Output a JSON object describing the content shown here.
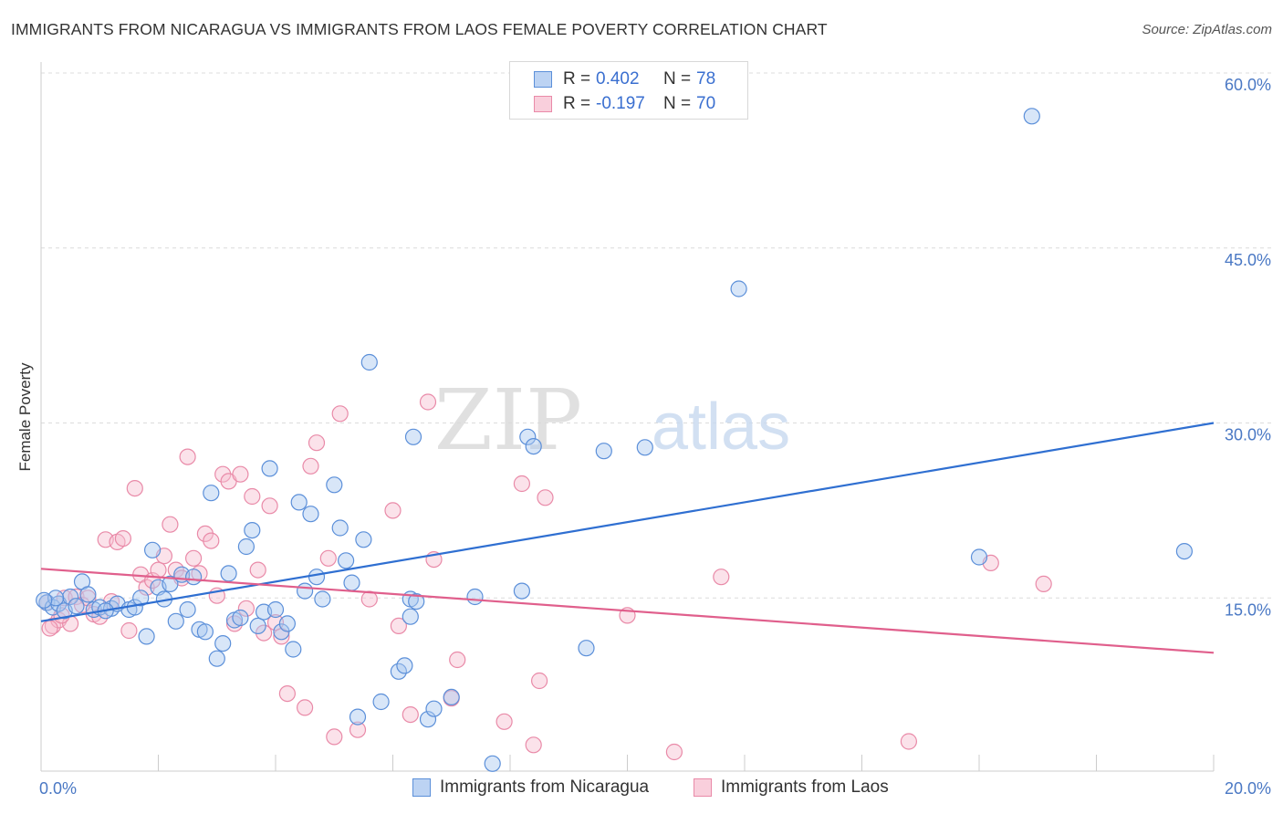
{
  "title": "IMMIGRANTS FROM NICARAGUA VS IMMIGRANTS FROM LAOS FEMALE POVERTY CORRELATION CHART",
  "source": "Source: ZipAtlas.com",
  "watermark": {
    "zip": "ZIP",
    "atlas": "atlas"
  },
  "colors": {
    "series1_fill": "#a9c7f0",
    "series1_stroke": "#5b8fd9",
    "series1_line": "#2f6fd1",
    "series2_fill": "#f6bfd0",
    "series2_stroke": "#e98aa8",
    "series2_line": "#e05f8c",
    "axis_text": "#4a78c4",
    "grid": "#dcdcdc"
  },
  "legend": {
    "rows": [
      {
        "r_label": "R =",
        "r_value": "0.402",
        "n_label": "N =",
        "n_value": "78"
      },
      {
        "r_label": "R =",
        "r_value": "-0.197",
        "n_label": "N =",
        "n_value": "70"
      }
    ]
  },
  "chart_data": {
    "type": "scatter",
    "xlabel": "",
    "ylabel": "Female Poverty",
    "xlim": [
      0,
      20
    ],
    "ylim": [
      0,
      60
    ],
    "x_tick_labels": [
      "0.0%",
      "20.0%"
    ],
    "y_tick_labels": [
      "15.0%",
      "30.0%",
      "45.0%",
      "60.0%"
    ],
    "y_ticks": [
      15,
      30,
      45,
      60
    ],
    "grid": true,
    "legend_placement": "top-center",
    "series": [
      {
        "name": "Immigrants from Nicaragua",
        "trend": {
          "x": [
            0,
            20
          ],
          "y": [
            13.0,
            30.0
          ]
        },
        "points": [
          [
            0.1,
            14.6
          ],
          [
            0.2,
            14.2
          ],
          [
            0.3,
            14.5
          ],
          [
            0.4,
            13.9
          ],
          [
            0.5,
            15.1
          ],
          [
            0.6,
            14.3
          ],
          [
            0.7,
            16.4
          ],
          [
            0.8,
            15.3
          ],
          [
            0.9,
            14.0
          ],
          [
            1.0,
            14.2
          ],
          [
            1.2,
            14.1
          ],
          [
            1.3,
            14.5
          ],
          [
            1.5,
            14.0
          ],
          [
            1.6,
            14.2
          ],
          [
            1.7,
            15.0
          ],
          [
            1.8,
            11.7
          ],
          [
            1.9,
            19.1
          ],
          [
            2.0,
            15.9
          ],
          [
            2.1,
            14.9
          ],
          [
            2.2,
            16.2
          ],
          [
            2.3,
            13.0
          ],
          [
            2.4,
            17.0
          ],
          [
            2.5,
            14.0
          ],
          [
            2.6,
            16.8
          ],
          [
            2.7,
            12.3
          ],
          [
            2.8,
            12.1
          ],
          [
            2.9,
            24.0
          ],
          [
            3.0,
            9.8
          ],
          [
            3.1,
            11.1
          ],
          [
            3.2,
            17.1
          ],
          [
            3.3,
            13.1
          ],
          [
            3.4,
            13.3
          ],
          [
            3.5,
            19.4
          ],
          [
            3.6,
            20.8
          ],
          [
            3.7,
            12.6
          ],
          [
            3.8,
            13.8
          ],
          [
            3.9,
            26.1
          ],
          [
            4.0,
            14.0
          ],
          [
            4.1,
            12.1
          ],
          [
            4.2,
            12.8
          ],
          [
            4.3,
            10.6
          ],
          [
            4.4,
            23.2
          ],
          [
            4.5,
            15.6
          ],
          [
            4.6,
            22.2
          ],
          [
            4.7,
            16.8
          ],
          [
            4.8,
            14.9
          ],
          [
            5.0,
            24.7
          ],
          [
            5.1,
            21.0
          ],
          [
            5.2,
            18.2
          ],
          [
            5.3,
            16.3
          ],
          [
            5.4,
            4.8
          ],
          [
            5.5,
            20.0
          ],
          [
            5.6,
            35.2
          ],
          [
            5.8,
            6.1
          ],
          [
            6.1,
            8.7
          ],
          [
            6.2,
            9.2
          ],
          [
            6.3,
            14.9
          ],
          [
            6.35,
            28.8
          ],
          [
            6.4,
            14.7
          ],
          [
            6.6,
            4.6
          ],
          [
            6.7,
            5.5
          ],
          [
            7.0,
            6.5
          ],
          [
            7.4,
            15.1
          ],
          [
            7.7,
            0.8
          ],
          [
            8.2,
            15.6
          ],
          [
            8.3,
            28.8
          ],
          [
            8.4,
            28.0
          ],
          [
            9.3,
            10.7
          ],
          [
            9.6,
            27.6
          ],
          [
            10.3,
            27.9
          ],
          [
            11.9,
            41.5
          ],
          [
            6.3,
            13.4
          ],
          [
            1.1,
            13.9
          ],
          [
            0.25,
            15.0
          ],
          [
            16.9,
            56.3
          ],
          [
            16.0,
            18.5
          ],
          [
            19.5,
            19.0
          ],
          [
            0.05,
            14.8
          ]
        ]
      },
      {
        "name": "Immigrants from Laos",
        "trend": {
          "x": [
            0,
            20
          ],
          "y": [
            17.5,
            10.3
          ]
        },
        "points": [
          [
            0.1,
            14.6
          ],
          [
            0.2,
            12.6
          ],
          [
            0.3,
            13.1
          ],
          [
            0.4,
            15.0
          ],
          [
            0.5,
            12.8
          ],
          [
            0.6,
            15.1
          ],
          [
            0.7,
            14.4
          ],
          [
            0.8,
            15.0
          ],
          [
            0.9,
            13.6
          ],
          [
            1.0,
            13.4
          ],
          [
            1.1,
            20.0
          ],
          [
            1.2,
            14.7
          ],
          [
            1.3,
            19.8
          ],
          [
            1.4,
            20.1
          ],
          [
            1.5,
            12.2
          ],
          [
            1.6,
            24.4
          ],
          [
            1.7,
            17.0
          ],
          [
            1.8,
            15.9
          ],
          [
            1.9,
            16.5
          ],
          [
            2.0,
            17.4
          ],
          [
            2.1,
            18.6
          ],
          [
            2.2,
            21.3
          ],
          [
            2.3,
            17.4
          ],
          [
            2.4,
            16.7
          ],
          [
            2.5,
            27.1
          ],
          [
            2.6,
            18.4
          ],
          [
            2.7,
            17.1
          ],
          [
            2.8,
            20.5
          ],
          [
            2.9,
            19.9
          ],
          [
            3.0,
            15.2
          ],
          [
            3.1,
            25.6
          ],
          [
            3.2,
            25.0
          ],
          [
            3.3,
            12.8
          ],
          [
            3.4,
            25.6
          ],
          [
            3.5,
            14.1
          ],
          [
            3.6,
            23.7
          ],
          [
            3.7,
            17.4
          ],
          [
            3.8,
            12.0
          ],
          [
            3.9,
            22.9
          ],
          [
            4.0,
            12.9
          ],
          [
            4.1,
            11.7
          ],
          [
            4.2,
            6.8
          ],
          [
            4.5,
            5.6
          ],
          [
            4.6,
            26.3
          ],
          [
            4.7,
            28.3
          ],
          [
            4.9,
            18.4
          ],
          [
            5.0,
            3.1
          ],
          [
            5.1,
            30.8
          ],
          [
            5.4,
            3.7
          ],
          [
            5.6,
            14.9
          ],
          [
            6.0,
            22.5
          ],
          [
            6.1,
            12.6
          ],
          [
            6.3,
            5.0
          ],
          [
            6.6,
            31.8
          ],
          [
            6.7,
            18.3
          ],
          [
            7.0,
            6.4
          ],
          [
            7.1,
            9.7
          ],
          [
            7.9,
            4.4
          ],
          [
            8.2,
            24.8
          ],
          [
            8.4,
            2.4
          ],
          [
            8.5,
            7.9
          ],
          [
            8.6,
            23.6
          ],
          [
            10.0,
            13.5
          ],
          [
            10.8,
            1.8
          ],
          [
            11.6,
            16.8
          ],
          [
            14.8,
            2.7
          ],
          [
            16.2,
            18.0
          ],
          [
            17.1,
            16.2
          ],
          [
            0.15,
            12.4
          ],
          [
            0.35,
            13.5
          ]
        ]
      }
    ]
  },
  "bottom_legend": [
    {
      "label": "Immigrants from Nicaragua"
    },
    {
      "label": "Immigrants from Laos"
    }
  ]
}
